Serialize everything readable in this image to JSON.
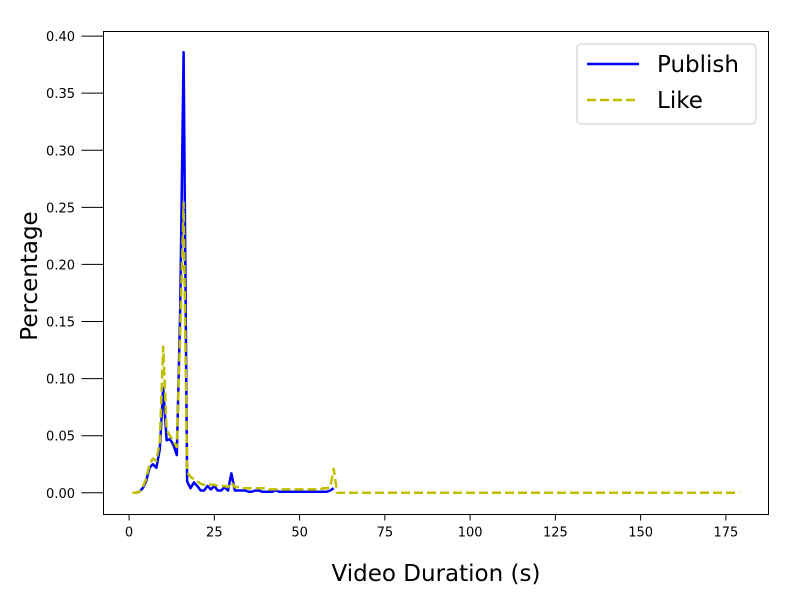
{
  "chart_data": {
    "type": "line",
    "title": "",
    "xlabel": "Video Duration (s)",
    "ylabel": "Percentage",
    "xlim": [
      -7.5,
      187.5
    ],
    "ylim": [
      -0.019,
      0.404
    ],
    "xticks": [
      0,
      25,
      50,
      75,
      100,
      125,
      150,
      175
    ],
    "yticks": [
      0.0,
      0.05,
      0.1,
      0.15,
      0.2,
      0.25,
      0.3,
      0.35,
      0.4
    ],
    "xtick_labels": [
      "0",
      "25",
      "50",
      "75",
      "100",
      "125",
      "150",
      "175"
    ],
    "ytick_labels": [
      "0.00",
      "0.05",
      "0.10",
      "0.15",
      "0.20",
      "0.25",
      "0.30",
      "0.35",
      "0.40"
    ],
    "grid": false,
    "legend_position": "top-right",
    "series": [
      {
        "name": "Publish",
        "color": "#0000ff",
        "dash": "solid",
        "x": [
          1,
          2,
          3,
          4,
          5,
          6,
          7,
          8,
          9,
          10,
          11,
          12,
          13,
          14,
          15,
          16,
          17,
          18,
          19,
          20,
          21,
          22,
          23,
          24,
          25,
          26,
          27,
          28,
          29,
          30,
          31,
          32,
          33,
          34,
          35,
          36,
          37,
          38,
          39,
          40,
          41,
          42,
          43,
          44,
          45,
          46,
          47,
          48,
          49,
          50,
          51,
          52,
          53,
          54,
          55,
          56,
          57,
          58,
          59,
          60
        ],
        "y": [
          0.0,
          0.0,
          0.001,
          0.004,
          0.01,
          0.022,
          0.025,
          0.022,
          0.038,
          0.092,
          0.046,
          0.047,
          0.042,
          0.033,
          0.16,
          0.386,
          0.01,
          0.004,
          0.009,
          0.006,
          0.002,
          0.002,
          0.006,
          0.003,
          0.006,
          0.002,
          0.002,
          0.005,
          0.002,
          0.017,
          0.002,
          0.002,
          0.002,
          0.002,
          0.001,
          0.001,
          0.002,
          0.002,
          0.001,
          0.001,
          0.001,
          0.001,
          0.002,
          0.001,
          0.001,
          0.001,
          0.001,
          0.001,
          0.001,
          0.001,
          0.001,
          0.001,
          0.001,
          0.001,
          0.001,
          0.001,
          0.001,
          0.001,
          0.002,
          0.004
        ]
      },
      {
        "name": "Like",
        "color": "#bfbf00",
        "dash": "dashed",
        "x": [
          1,
          2,
          3,
          4,
          5,
          6,
          7,
          8,
          9,
          10,
          11,
          12,
          13,
          14,
          15,
          16,
          17,
          18,
          19,
          20,
          21,
          22,
          23,
          24,
          25,
          26,
          27,
          28,
          29,
          30,
          31,
          32,
          33,
          34,
          35,
          36,
          37,
          38,
          39,
          40,
          41,
          42,
          43,
          44,
          45,
          46,
          47,
          48,
          49,
          50,
          51,
          52,
          53,
          54,
          55,
          56,
          57,
          58,
          59,
          60,
          61,
          179
        ],
        "y": [
          0.0,
          0.0,
          0.001,
          0.005,
          0.012,
          0.025,
          0.03,
          0.028,
          0.045,
          0.128,
          0.055,
          0.05,
          0.045,
          0.04,
          0.14,
          0.254,
          0.018,
          0.014,
          0.012,
          0.01,
          0.008,
          0.007,
          0.008,
          0.007,
          0.007,
          0.006,
          0.006,
          0.006,
          0.005,
          0.009,
          0.005,
          0.005,
          0.004,
          0.004,
          0.004,
          0.004,
          0.004,
          0.004,
          0.004,
          0.004,
          0.003,
          0.003,
          0.003,
          0.003,
          0.003,
          0.003,
          0.003,
          0.003,
          0.003,
          0.003,
          0.003,
          0.003,
          0.003,
          0.003,
          0.003,
          0.003,
          0.004,
          0.004,
          0.005,
          0.021,
          0.0,
          0.0
        ]
      }
    ]
  }
}
